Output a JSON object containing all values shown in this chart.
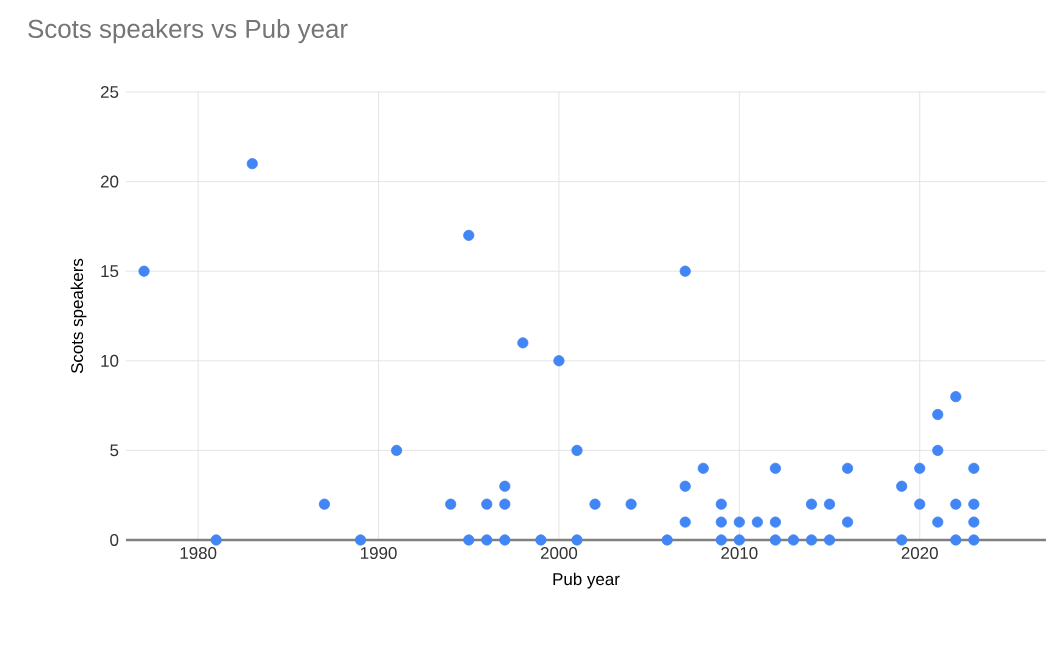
{
  "chart_data": {
    "type": "scatter",
    "title": "Scots speakers vs Pub year",
    "xlabel": "Pub year",
    "ylabel": "Scots speakers",
    "x": [
      1977,
      1981,
      1983,
      1987,
      1989,
      1991,
      1994,
      1995,
      1995,
      1996,
      1996,
      1997,
      1997,
      1997,
      1998,
      1999,
      2000,
      2001,
      2001,
      2002,
      2004,
      2006,
      2007,
      2007,
      2007,
      2008,
      2009,
      2009,
      2009,
      2010,
      2010,
      2011,
      2012,
      2012,
      2012,
      2013,
      2014,
      2014,
      2015,
      2015,
      2016,
      2016,
      2019,
      2019,
      2020,
      2020,
      2021,
      2021,
      2021,
      2022,
      2022,
      2022,
      2023,
      2023,
      2023,
      2023
    ],
    "series": [
      {
        "color": "#4285f4",
        "values": [
          15,
          0,
          21,
          2,
          0,
          5,
          2,
          17,
          0,
          2,
          0,
          3,
          2,
          0,
          11,
          0,
          10,
          5,
          0,
          2,
          2,
          0,
          15,
          3,
          1,
          4,
          2,
          1,
          0,
          1,
          0,
          1,
          4,
          1,
          0,
          0,
          2,
          0,
          2,
          0,
          4,
          1,
          3,
          0,
          4,
          2,
          7,
          5,
          1,
          8,
          2,
          0,
          4,
          2,
          1,
          0
        ]
      }
    ],
    "xlim": [
      1976,
      2027
    ],
    "ylim": [
      0,
      25
    ],
    "xticks": [
      1980,
      1990,
      2000,
      2010,
      2020
    ],
    "yticks": [
      0,
      5,
      10,
      15,
      20,
      25
    ],
    "grid": true
  }
}
